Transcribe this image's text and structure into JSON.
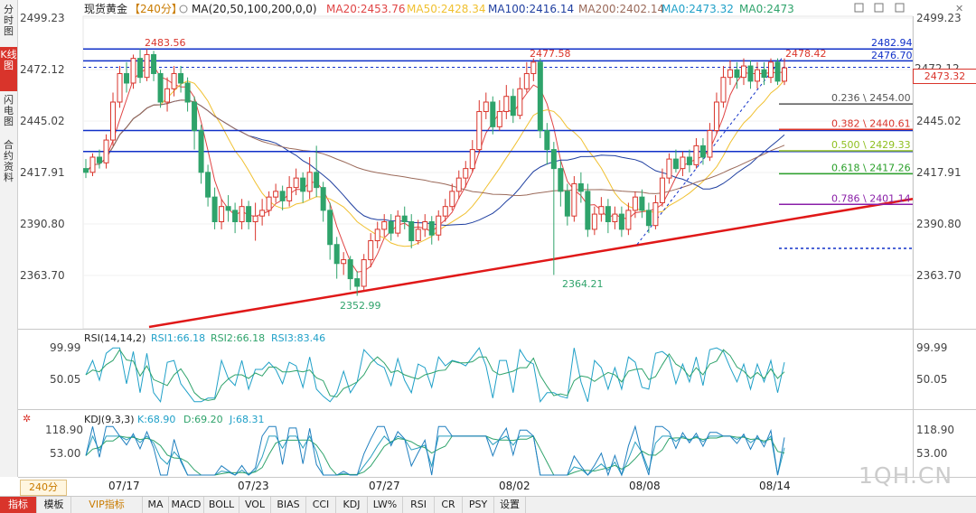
{
  "header": {
    "symbol": "现货黄金",
    "period_tag": "【240分】",
    "ma_label": "MA(20,50,100,200,0,0)",
    "ma20": "MA20:2453.76",
    "ma50": "MA50:2428.34",
    "ma100": "MA100:2416.14",
    "ma200": "MA200:2402.14",
    "ma0a": "MA0:2473.32",
    "ma0b": "MA0:2473"
  },
  "side_tabs": [
    "分时图",
    "K线图",
    "闪电图",
    "合约资料"
  ],
  "colors": {
    "up": "#d9342b",
    "down": "#2fa36b",
    "ma20": "#e04545",
    "ma50": "#f0c030",
    "ma100": "#1f3fa0",
    "ma200": "#9b6a5a",
    "trend": "#e01818",
    "hline": "#1030c8",
    "rsi": "#1fa0c8",
    "kdj": "#2a9fc0"
  },
  "chart_data": {
    "type": "candlestick",
    "title": "现货黄金 【240分】",
    "y_ticks": [
      "2499.23",
      "2472.12",
      "2445.02",
      "2417.91",
      "2390.80",
      "2363.70"
    ],
    "ylim": [
      2336.6,
      2499.23
    ],
    "x_ticks": [
      "07/17",
      "07/23",
      "07/27",
      "08/02",
      "08/08",
      "08/14"
    ],
    "close_line": 2473.32,
    "last_price_label": "2473.32",
    "marks": {
      "high1": "2483.56",
      "high2": "2477.58",
      "high3": "2478.42",
      "low1": "2352.99",
      "low2": "2364.21",
      "tick_partial": "2472.12"
    },
    "resistance": [
      {
        "label": "2482.94",
        "value": 2482.94
      },
      {
        "label": "2476.70",
        "value": 2476.7
      }
    ],
    "support_lines": [
      2440.0,
      2429.0
    ],
    "fib_levels": [
      {
        "label": "0.236 \\ 2454.00",
        "value": 2454.0,
        "color": "#555555"
      },
      {
        "label": "0.382 \\ 2440.61",
        "value": 2440.61,
        "color": "#d9342b"
      },
      {
        "label": "0.500 \\ 2429.33",
        "value": 2429.33,
        "color": "#8fbf1f"
      },
      {
        "label": "0.618 \\ 2417.26",
        "value": 2417.26,
        "color": "#2aa02a"
      },
      {
        "label": "0.786 \\ 2401.14",
        "value": 2401.14,
        "color": "#8a1fa8"
      },
      {
        "label": "",
        "value": 2378.0,
        "color": "#1030c8"
      }
    ],
    "candles_ohl_approx": [
      [
        2420,
        2418,
        2425,
        2415
      ],
      [
        2418,
        2426,
        2428,
        2416
      ],
      [
        2426,
        2423,
        2430,
        2420
      ],
      [
        2423,
        2435,
        2438,
        2420
      ],
      [
        2435,
        2455,
        2460,
        2432
      ],
      [
        2455,
        2470,
        2474,
        2452
      ],
      [
        2470,
        2465,
        2476,
        2460
      ],
      [
        2465,
        2478,
        2480,
        2462
      ],
      [
        2478,
        2468,
        2483,
        2465
      ],
      [
        2468,
        2480,
        2483,
        2466
      ],
      [
        2480,
        2470,
        2482,
        2466
      ],
      [
        2470,
        2455,
        2472,
        2452
      ],
      [
        2455,
        2462,
        2468,
        2450
      ],
      [
        2462,
        2470,
        2474,
        2458
      ],
      [
        2470,
        2465,
        2474,
        2460
      ],
      [
        2465,
        2455,
        2468,
        2450
      ],
      [
        2455,
        2440,
        2458,
        2430
      ],
      [
        2440,
        2418,
        2443,
        2412
      ],
      [
        2418,
        2405,
        2422,
        2400
      ],
      [
        2405,
        2392,
        2410,
        2388
      ],
      [
        2392,
        2400,
        2404,
        2388
      ],
      [
        2400,
        2398,
        2406,
        2392
      ],
      [
        2398,
        2392,
        2402,
        2386
      ],
      [
        2392,
        2400,
        2404,
        2388
      ],
      [
        2400,
        2392,
        2403,
        2388
      ],
      [
        2392,
        2395,
        2402,
        2382
      ],
      [
        2395,
        2398,
        2404,
        2390
      ],
      [
        2398,
        2405,
        2408,
        2395
      ],
      [
        2405,
        2408,
        2412,
        2402
      ],
      [
        2408,
        2403,
        2411,
        2398
      ],
      [
        2403,
        2410,
        2416,
        2400
      ],
      [
        2410,
        2415,
        2420,
        2406
      ],
      [
        2415,
        2408,
        2418,
        2402
      ],
      [
        2408,
        2418,
        2426,
        2404
      ],
      [
        2418,
        2410,
        2432,
        2405
      ],
      [
        2410,
        2398,
        2413,
        2392
      ],
      [
        2398,
        2380,
        2402,
        2372
      ],
      [
        2380,
        2370,
        2384,
        2362
      ],
      [
        2370,
        2372,
        2376,
        2364
      ],
      [
        2372,
        2362,
        2374,
        2356
      ],
      [
        2362,
        2358,
        2366,
        2353
      ],
      [
        2358,
        2372,
        2375,
        2356
      ],
      [
        2372,
        2382,
        2386,
        2368
      ],
      [
        2382,
        2388,
        2392,
        2378
      ],
      [
        2388,
        2392,
        2396,
        2384
      ],
      [
        2392,
        2386,
        2396,
        2382
      ],
      [
        2386,
        2395,
        2398,
        2384
      ],
      [
        2395,
        2392,
        2400,
        2388
      ],
      [
        2392,
        2382,
        2396,
        2378
      ],
      [
        2382,
        2388,
        2393,
        2380
      ],
      [
        2388,
        2392,
        2396,
        2384
      ],
      [
        2392,
        2385,
        2395,
        2380
      ],
      [
        2385,
        2395,
        2398,
        2382
      ],
      [
        2395,
        2400,
        2404,
        2392
      ],
      [
        2400,
        2408,
        2412,
        2398
      ],
      [
        2408,
        2415,
        2419,
        2404
      ],
      [
        2415,
        2420,
        2424,
        2410
      ],
      [
        2420,
        2430,
        2435,
        2418
      ],
      [
        2430,
        2450,
        2456,
        2428
      ],
      [
        2450,
        2455,
        2460,
        2446
      ],
      [
        2455,
        2442,
        2458,
        2438
      ],
      [
        2442,
        2450,
        2456,
        2440
      ],
      [
        2450,
        2458,
        2464,
        2446
      ],
      [
        2458,
        2448,
        2462,
        2444
      ],
      [
        2448,
        2462,
        2468,
        2446
      ],
      [
        2462,
        2470,
        2476,
        2460
      ],
      [
        2470,
        2476,
        2478,
        2466
      ],
      [
        2476,
        2440,
        2478,
        2436
      ],
      [
        2440,
        2430,
        2444,
        2422
      ],
      [
        2430,
        2420,
        2434,
        2364
      ],
      [
        2420,
        2408,
        2424,
        2400
      ],
      [
        2408,
        2395,
        2412,
        2390
      ],
      [
        2395,
        2412,
        2416,
        2392
      ],
      [
        2412,
        2408,
        2418,
        2402
      ],
      [
        2408,
        2388,
        2412,
        2384
      ],
      [
        2388,
        2396,
        2400,
        2385
      ],
      [
        2396,
        2400,
        2405,
        2392
      ],
      [
        2400,
        2392,
        2404,
        2386
      ],
      [
        2392,
        2396,
        2400,
        2388
      ],
      [
        2396,
        2388,
        2400,
        2384
      ],
      [
        2388,
        2398,
        2402,
        2385
      ],
      [
        2398,
        2405,
        2408,
        2394
      ],
      [
        2405,
        2398,
        2409,
        2394
      ],
      [
        2398,
        2390,
        2402,
        2386
      ],
      [
        2390,
        2402,
        2406,
        2388
      ],
      [
        2402,
        2415,
        2420,
        2400
      ],
      [
        2415,
        2425,
        2428,
        2412
      ],
      [
        2425,
        2420,
        2430,
        2418
      ],
      [
        2420,
        2426,
        2429,
        2416
      ],
      [
        2426,
        2422,
        2430,
        2418
      ],
      [
        2422,
        2432,
        2436,
        2420
      ],
      [
        2432,
        2426,
        2436,
        2422
      ],
      [
        2426,
        2440,
        2444,
        2424
      ],
      [
        2440,
        2455,
        2460,
        2438
      ],
      [
        2455,
        2468,
        2474,
        2452
      ],
      [
        2468,
        2472,
        2477,
        2464
      ],
      [
        2472,
        2468,
        2476,
        2462
      ],
      [
        2468,
        2474,
        2478,
        2464
      ],
      [
        2474,
        2466,
        2477,
        2462
      ],
      [
        2466,
        2472,
        2476,
        2462
      ],
      [
        2472,
        2468,
        2476,
        2464
      ],
      [
        2468,
        2476,
        2478,
        2465
      ],
      [
        2476,
        2466,
        2478,
        2464
      ],
      [
        2466,
        2473,
        2478,
        2464
      ]
    ],
    "rsi": {
      "label": "RSI(14,14,2)",
      "rsi1": "RSI1:66.18",
      "rsi2": "RSI2:66.18",
      "rsi3": "RSI3:83.46",
      "ticks": [
        "99.99",
        "50.05"
      ],
      "ylim": [
        0,
        100
      ]
    },
    "kdj": {
      "label": "KDJ(9,3,3)",
      "k": "K:68.90",
      "d": "D:69.20",
      "j": "J:68.31",
      "ticks": [
        "118.90",
        "53.00"
      ],
      "ylim": [
        0,
        130
      ]
    }
  },
  "period_button": "240分",
  "watermark": "1QH.CN",
  "bottom_tabs": [
    "指标",
    "模板",
    "VIP指标",
    "MA",
    "MACD",
    "BOLL",
    "VOL",
    "BIAS",
    "CCI",
    "KDJ",
    "LW%",
    "RSI",
    "CR",
    "PSY",
    "设置"
  ]
}
